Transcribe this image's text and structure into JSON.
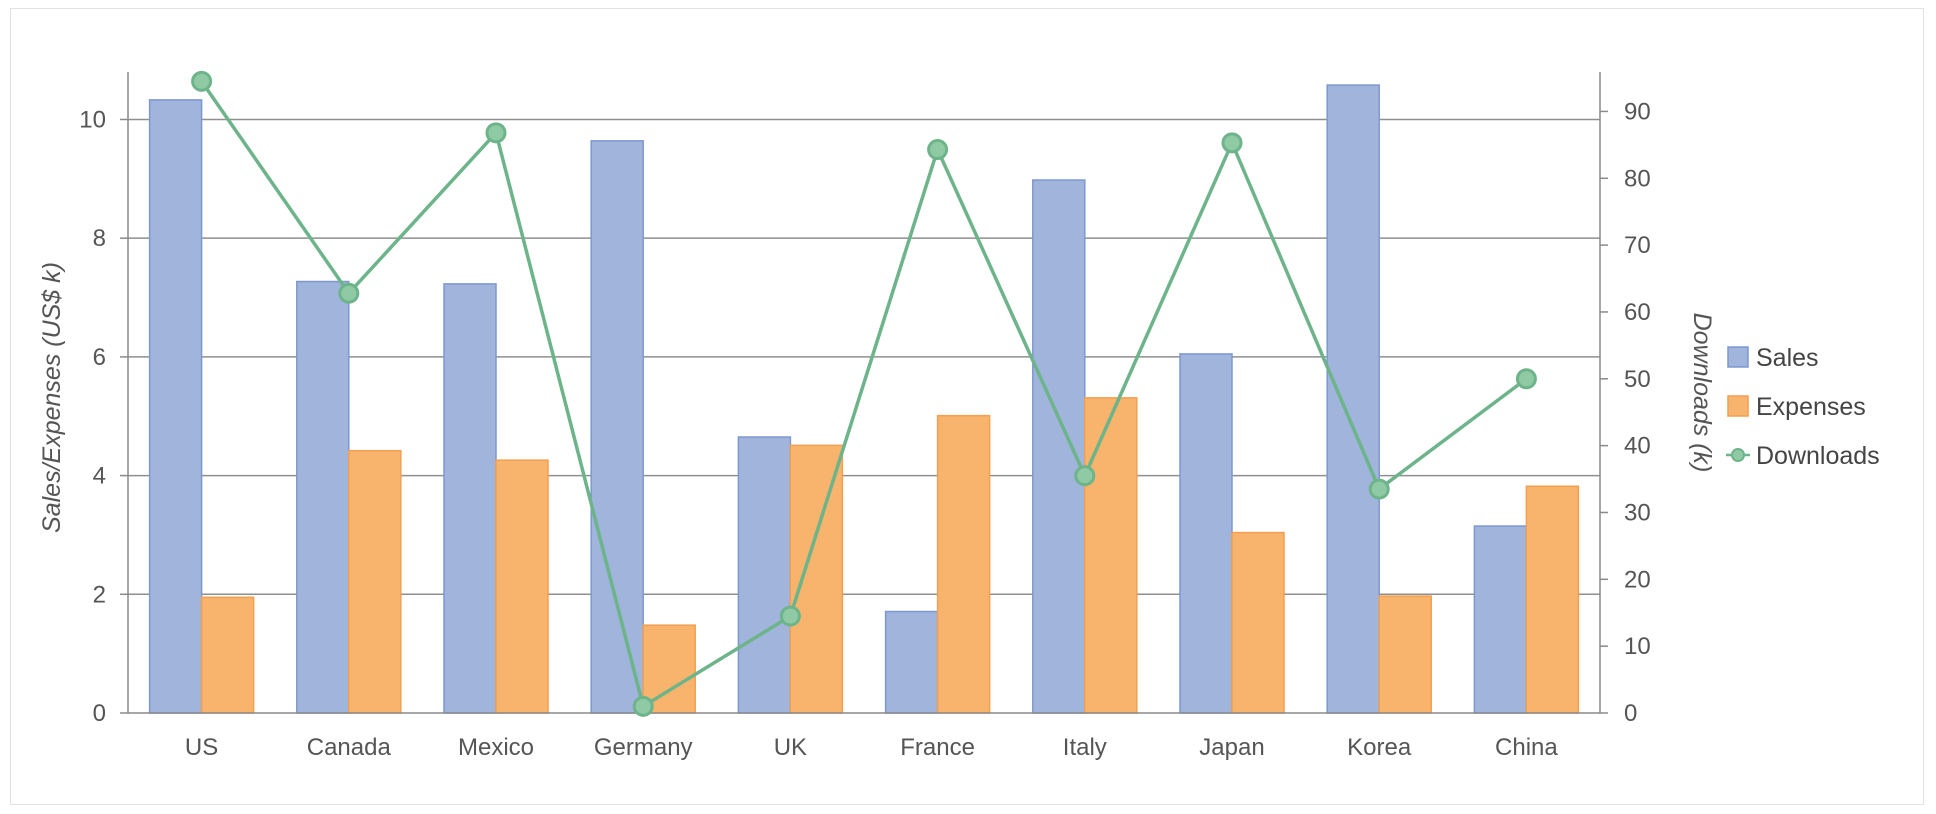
{
  "chart_data": {
    "type": "bar",
    "categories": [
      "US",
      "Canada",
      "Mexico",
      "Germany",
      "UK",
      "France",
      "Italy",
      "Japan",
      "Korea",
      "China"
    ],
    "series": [
      {
        "name": "Sales",
        "type": "bar",
        "axis": "left",
        "color": "#a0b4dc",
        "stroke": "#7d98d0",
        "values": [
          10.33,
          7.27,
          7.23,
          9.64,
          4.65,
          1.71,
          8.98,
          6.05,
          10.58,
          3.15
        ]
      },
      {
        "name": "Expenses",
        "type": "bar",
        "axis": "left",
        "color": "#f8b46c",
        "stroke": "#f0a050",
        "values": [
          1.95,
          4.42,
          4.26,
          1.48,
          4.51,
          5.01,
          5.31,
          3.04,
          1.97,
          3.82
        ]
      },
      {
        "name": "Downloads",
        "type": "line",
        "axis": "right",
        "color": "#6db48a",
        "values": [
          94.5,
          62.8,
          86.8,
          1.0,
          14.5,
          84.3,
          35.5,
          85.3,
          33.5,
          50.0
        ]
      }
    ],
    "y_left": {
      "label": "Sales/Expenses (US$ k)",
      "min": 0,
      "max": 10.8,
      "ticks": [
        0,
        2,
        4,
        6,
        8,
        10
      ]
    },
    "y_right": {
      "label": "Downloads (k)",
      "min": 0,
      "max": 95.9,
      "ticks": [
        0,
        10,
        20,
        30,
        40,
        50,
        60,
        70,
        80,
        90
      ]
    },
    "gridlines": true,
    "legend_position": "right"
  }
}
